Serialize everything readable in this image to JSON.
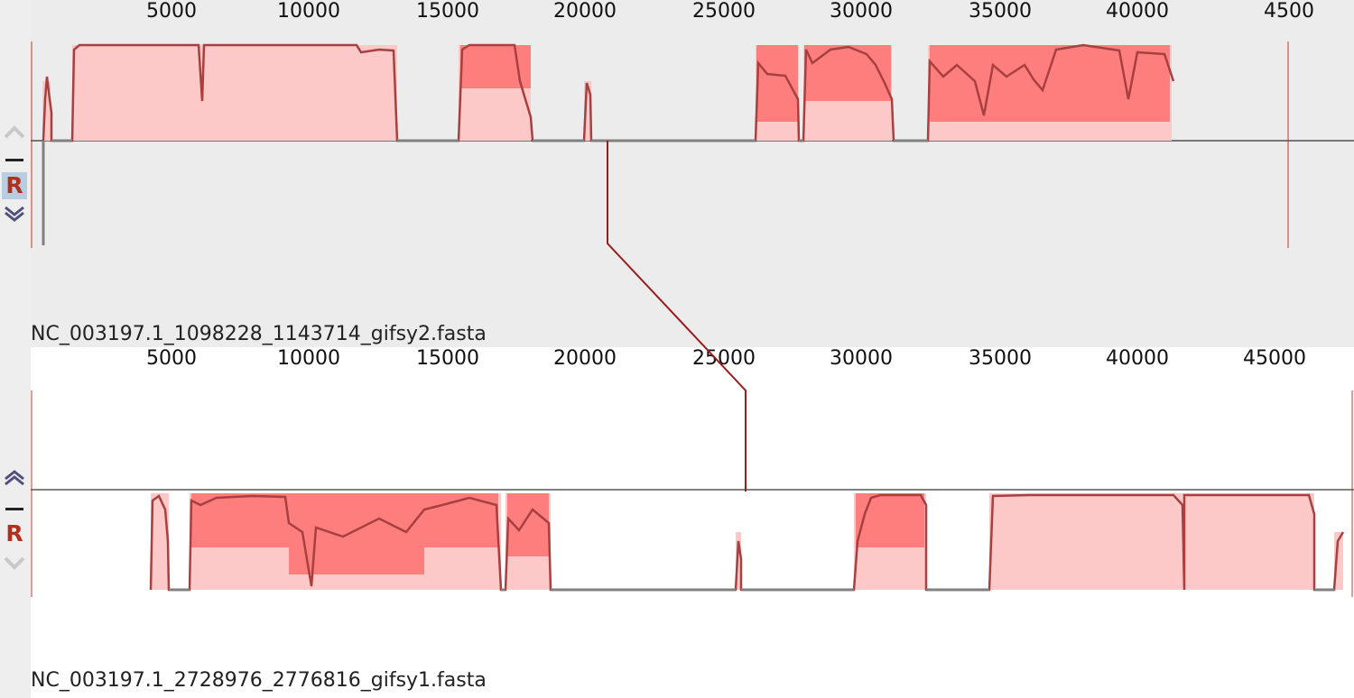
{
  "colors": {
    "fill": "#fcc8c8",
    "bar": "#ff6464",
    "profile": "#a84040",
    "baseline_gray": "#808080",
    "connector": "#9b1c1c",
    "panel_bg_top": "#ececec",
    "panel_bg_bottom": "#ffffff"
  },
  "tracks": [
    {
      "label": "NC_003197.1_1098228_1143714_gifsy2.fasta",
      "ticks": [
        "5000",
        "10000",
        "15000",
        "20000",
        "25000",
        "30000",
        "35000",
        "40000",
        "4500"
      ],
      "controls": {
        "up_icon": "chevron-up-icon",
        "minus_icon": "minus-icon",
        "r_label": "R",
        "down_icon": "chevron-down-icon"
      }
    },
    {
      "label": "NC_003197.1_2728976_2776816_gifsy1.fasta",
      "ticks": [
        "5000",
        "10000",
        "15000",
        "20000",
        "25000",
        "30000",
        "35000",
        "40000",
        "45000"
      ],
      "controls": {
        "up_icon": "chevron-up-icon",
        "minus_icon": "minus-icon",
        "r_label": "R",
        "down_icon": "chevron-down-icon"
      }
    }
  ]
}
